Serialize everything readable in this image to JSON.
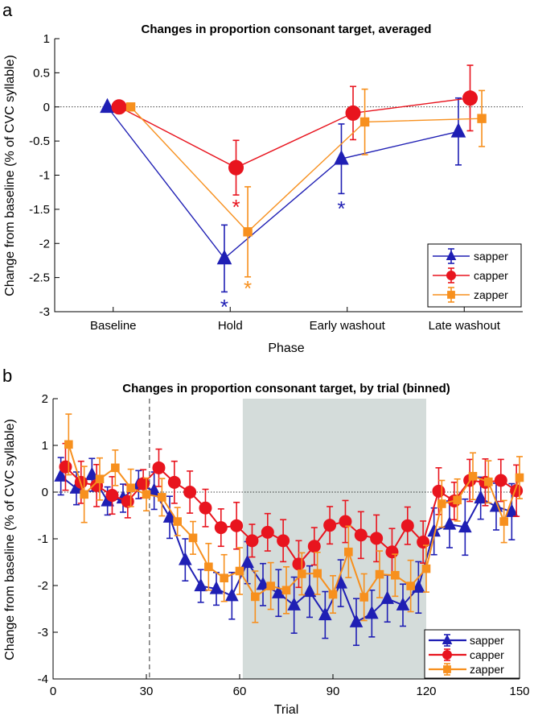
{
  "colors": {
    "sapper": "#1f1fb4",
    "capper": "#e8141e",
    "zapper": "#f7901e",
    "shade": "#d4dcda"
  },
  "chart_data": [
    {
      "panel_label": "a",
      "type": "line",
      "title": "Changes in proportion consonant target, averaged",
      "xlabel": "Phase",
      "ylabel": "Change from baseline (% of CVC syllable)",
      "categories": [
        "Baseline",
        "Hold",
        "Early washout",
        "Late washout"
      ],
      "ylim": [
        -3,
        1
      ],
      "yticks": [
        1,
        0.5,
        0,
        -0.5,
        -1,
        -1.5,
        -2,
        -2.5,
        -3
      ],
      "ytick_labels": [
        "1",
        "0.5",
        "0",
        "-0.5",
        "-1",
        "-1.5",
        "-2",
        "-2.5",
        "-3"
      ],
      "reference_line": 0,
      "legend_position": "bottom-right",
      "series": [
        {
          "name": "sapper",
          "marker": "triangle",
          "offset": -0.05,
          "values": [
            0,
            -2.22,
            -0.76,
            -0.36
          ],
          "errors": [
            0,
            0.49,
            0.51,
            0.49
          ]
        },
        {
          "name": "capper",
          "marker": "circle",
          "offset": 0.05,
          "values": [
            0,
            -0.89,
            -0.09,
            0.13
          ],
          "errors": [
            0,
            0.4,
            0.39,
            0.48
          ]
        },
        {
          "name": "zapper",
          "marker": "square",
          "offset": 0.15,
          "values": [
            0,
            -1.83,
            -0.22,
            -0.17
          ],
          "errors": [
            0,
            0.66,
            0.48,
            0.41
          ]
        }
      ],
      "significance": [
        {
          "series": "sapper",
          "category": "Hold",
          "y": -2.87,
          "symbol": "*"
        },
        {
          "series": "capper",
          "category": "Hold",
          "y": -1.41,
          "symbol": "*"
        },
        {
          "series": "zapper",
          "category": "Hold",
          "y": -2.6,
          "symbol": "*"
        },
        {
          "series": "sapper",
          "category": "Early washout",
          "y": -1.43,
          "symbol": "*"
        }
      ]
    },
    {
      "panel_label": "b",
      "type": "line",
      "title": "Changes in proportion consonant target, by trial (binned)",
      "xlabel": "Trial",
      "ylabel": "Change from baseline (% of CVC syllable)",
      "xlim": [
        0,
        150
      ],
      "xticks": [
        0,
        30,
        60,
        90,
        120,
        150
      ],
      "xtick_labels": [
        "0",
        "30",
        "60",
        "90",
        "120",
        "150"
      ],
      "ylim": [
        -4,
        2
      ],
      "yticks": [
        2,
        1,
        0,
        -1,
        -2,
        -3,
        -4
      ],
      "ytick_labels": [
        "2",
        "1",
        "0",
        "-1",
        "-2",
        "-3",
        "-4"
      ],
      "reference_line": 0,
      "dashed_vline": 31,
      "shaded_range": [
        61,
        120
      ],
      "legend_position": "bottom-right",
      "series": [
        {
          "name": "sapper",
          "marker": "triangle",
          "x_start": 2.5,
          "x_step": 5,
          "values": [
            0.34,
            0.08,
            0.37,
            -0.19,
            -0.13,
            0.16,
            0.03,
            -0.54,
            -1.45,
            -2.01,
            -2.07,
            -2.22,
            -1.51,
            -1.98,
            -2.16,
            -2.42,
            -2.13,
            -2.63,
            -1.95,
            -2.78,
            -2.6,
            -2.28,
            -2.42,
            -2.04,
            -0.84,
            -0.69,
            -0.75,
            -0.13,
            -0.31,
            -0.42
          ],
          "errors": [
            0.4,
            0.35,
            0.35,
            0.3,
            0.3,
            0.3,
            0.4,
            0.45,
            0.45,
            0.35,
            0.35,
            0.5,
            0.45,
            0.45,
            0.5,
            0.6,
            0.55,
            0.5,
            0.5,
            0.5,
            0.5,
            0.5,
            0.45,
            0.55,
            0.5,
            0.5,
            0.6,
            0.45,
            0.5,
            0.6
          ]
        },
        {
          "name": "capper",
          "marker": "circle",
          "x_start": 4,
          "x_step": 5,
          "values": [
            0.54,
            0.21,
            0.14,
            -0.07,
            -0.2,
            0.18,
            0.52,
            0.21,
            0.0,
            -0.34,
            -0.76,
            -0.72,
            -1.04,
            -0.86,
            -1.04,
            -1.54,
            -1.16,
            -0.71,
            -0.63,
            -0.92,
            -0.99,
            -1.28,
            -0.72,
            -1.07,
            0.02,
            -0.19,
            0.25,
            0.21,
            0.25,
            0.03
          ],
          "errors": [
            0.5,
            0.45,
            0.45,
            0.4,
            0.35,
            0.3,
            0.4,
            0.45,
            0.45,
            0.4,
            0.4,
            0.5,
            0.35,
            0.4,
            0.45,
            0.5,
            0.4,
            0.4,
            0.45,
            0.5,
            0.5,
            0.5,
            0.4,
            0.45,
            0.5,
            0.4,
            0.45,
            0.5,
            0.45,
            0.55
          ]
        },
        {
          "name": "zapper",
          "marker": "square",
          "x_start": 5,
          "x_step": 5,
          "values": [
            1.02,
            -0.05,
            0.28,
            0.52,
            0.09,
            -0.05,
            -0.11,
            -0.63,
            -0.98,
            -1.6,
            -1.84,
            -1.69,
            -2.24,
            -2.01,
            -2.1,
            -1.75,
            -1.74,
            -2.19,
            -1.28,
            -2.25,
            -1.76,
            -1.78,
            -2.01,
            -1.64,
            -0.25,
            -0.17,
            0.34,
            0.22,
            -0.63,
            0.31
          ],
          "errors": [
            0.65,
            0.6,
            0.45,
            0.38,
            0.4,
            0.35,
            0.4,
            0.3,
            0.35,
            0.5,
            0.5,
            0.5,
            0.55,
            0.5,
            0.5,
            0.45,
            0.45,
            0.4,
            0.55,
            0.5,
            0.5,
            0.45,
            0.55,
            0.5,
            0.5,
            0.45,
            0.5,
            0.45,
            0.45,
            0.45
          ]
        }
      ]
    }
  ]
}
